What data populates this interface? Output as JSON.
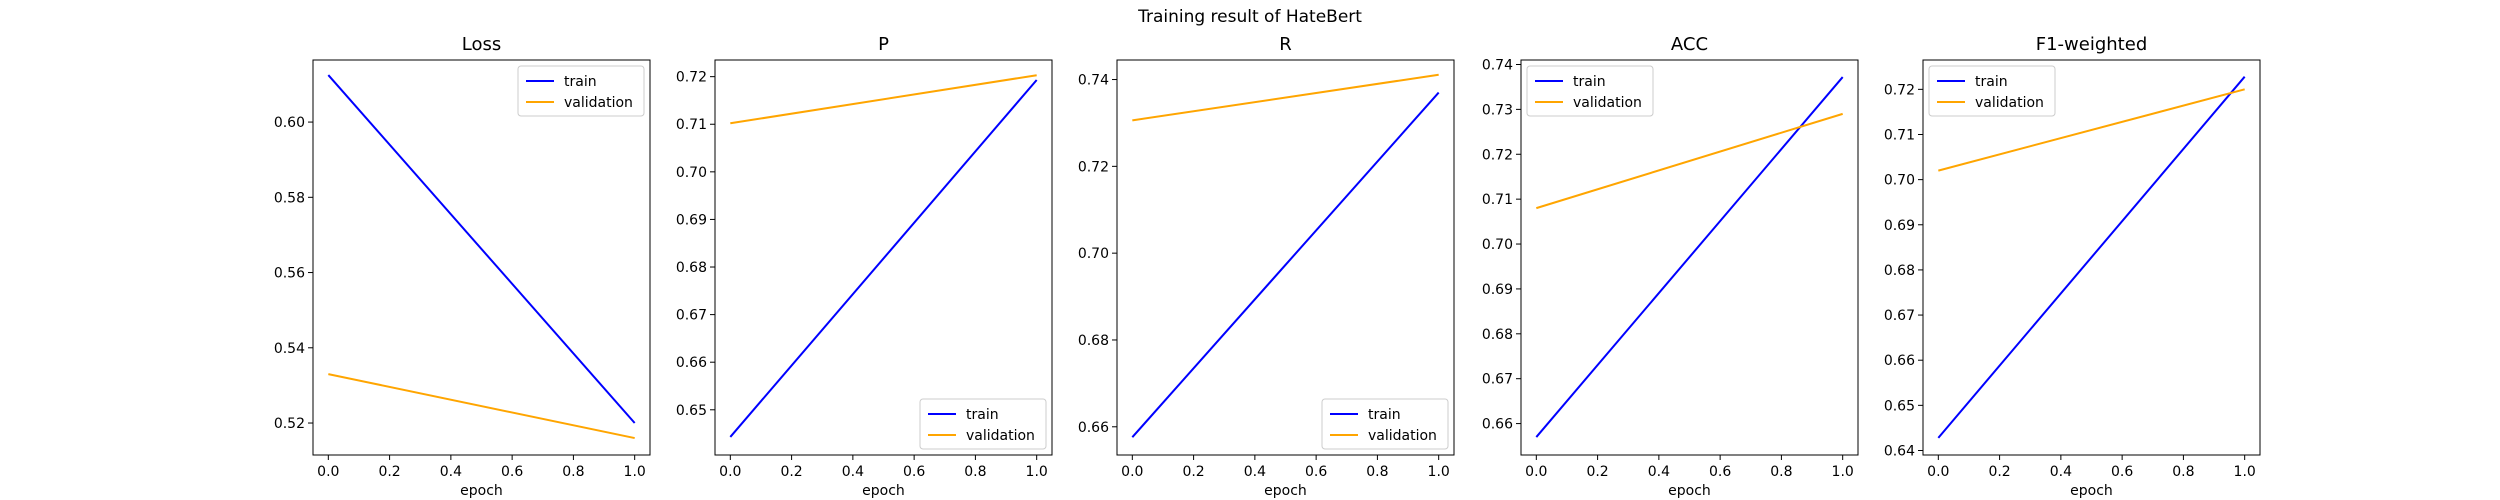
{
  "suptitle": "Training result of HateBert",
  "colors": {
    "train": "#0000ff",
    "validation": "#ffa500"
  },
  "chart_data": [
    {
      "type": "line",
      "title": "Loss",
      "xlabel": "epoch",
      "ylabel": "",
      "x": [
        0,
        1
      ],
      "xlim": [
        -0.05,
        1.05
      ],
      "xticks": [
        "0.0",
        "0.2",
        "0.4",
        "0.6",
        "0.8",
        "1.0"
      ],
      "ylim": [
        0.5115,
        0.6165
      ],
      "yticks": [
        "0.52",
        "0.54",
        "0.56",
        "0.58",
        "0.60"
      ],
      "legend": "upper right",
      "grid": false,
      "series": [
        {
          "name": "train",
          "values": [
            0.6125,
            0.52
          ]
        },
        {
          "name": "validation",
          "values": [
            0.533,
            0.516
          ]
        }
      ]
    },
    {
      "type": "line",
      "title": "P",
      "xlabel": "epoch",
      "ylabel": "",
      "x": [
        0,
        1
      ],
      "xlim": [
        -0.05,
        1.05
      ],
      "xticks": [
        "0.0",
        "0.2",
        "0.4",
        "0.6",
        "0.8",
        "1.0"
      ],
      "ylim": [
        0.6405,
        0.7235
      ],
      "yticks": [
        "0.65",
        "0.66",
        "0.67",
        "0.68",
        "0.69",
        "0.70",
        "0.71",
        "0.72"
      ],
      "legend": "lower right",
      "grid": false,
      "series": [
        {
          "name": "train",
          "values": [
            0.6443,
            0.7193
          ]
        },
        {
          "name": "validation",
          "values": [
            0.7102,
            0.7203
          ]
        }
      ]
    },
    {
      "type": "line",
      "title": "R",
      "xlabel": "epoch",
      "ylabel": "",
      "x": [
        0,
        1
      ],
      "xlim": [
        -0.05,
        1.05
      ],
      "xticks": [
        "0.0",
        "0.2",
        "0.4",
        "0.6",
        "0.8",
        "1.0"
      ],
      "ylim": [
        0.6535,
        0.7445
      ],
      "yticks": [
        "0.66",
        "0.68",
        "0.70",
        "0.72",
        "0.74"
      ],
      "legend": "lower right",
      "grid": false,
      "series": [
        {
          "name": "train",
          "values": [
            0.6576,
            0.737
          ]
        },
        {
          "name": "validation",
          "values": [
            0.7306,
            0.7411
          ]
        }
      ]
    },
    {
      "type": "line",
      "title": "ACC",
      "xlabel": "epoch",
      "ylabel": "",
      "x": [
        0,
        1
      ],
      "xlim": [
        -0.05,
        1.05
      ],
      "xticks": [
        "0.0",
        "0.2",
        "0.4",
        "0.6",
        "0.8",
        "1.0"
      ],
      "ylim": [
        0.653,
        0.741
      ],
      "yticks": [
        "0.66",
        "0.67",
        "0.68",
        "0.69",
        "0.70",
        "0.71",
        "0.72",
        "0.73",
        "0.74"
      ],
      "legend": "upper left",
      "grid": false,
      "series": [
        {
          "name": "train",
          "values": [
            0.657,
            0.7372
          ]
        },
        {
          "name": "validation",
          "values": [
            0.708,
            0.729
          ]
        }
      ]
    },
    {
      "type": "line",
      "title": "F1-weighted",
      "xlabel": "epoch",
      "ylabel": "",
      "x": [
        0,
        1
      ],
      "xlim": [
        -0.05,
        1.05
      ],
      "xticks": [
        "0.0",
        "0.2",
        "0.4",
        "0.6",
        "0.8",
        "1.0"
      ],
      "ylim": [
        0.639,
        0.7265
      ],
      "yticks": [
        "0.64",
        "0.65",
        "0.66",
        "0.67",
        "0.68",
        "0.69",
        "0.70",
        "0.71",
        "0.72"
      ],
      "legend": "upper left",
      "grid": false,
      "series": [
        {
          "name": "train",
          "values": [
            0.6428,
            0.7228
          ]
        },
        {
          "name": "validation",
          "values": [
            0.702,
            0.72
          ]
        }
      ]
    }
  ]
}
